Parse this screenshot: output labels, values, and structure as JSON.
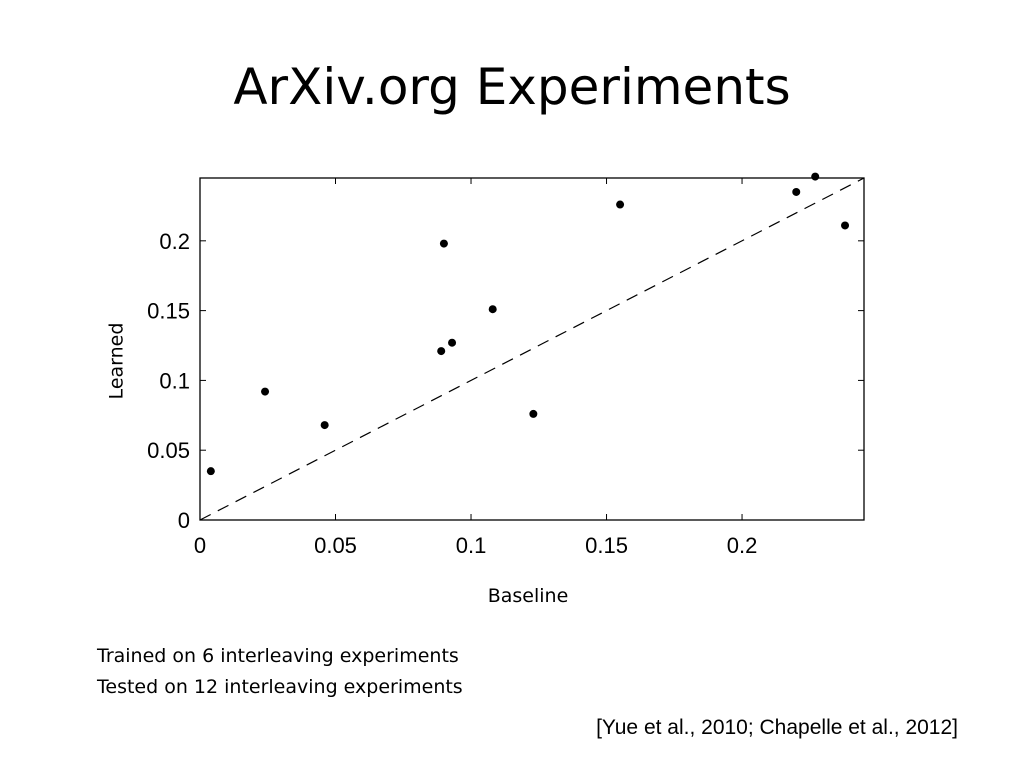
{
  "slide": {
    "title": "ArXiv.org Experiments",
    "notes": [
      "Trained on 6 interleaving experiments",
      "Tested on 12 interleaving experiments"
    ],
    "citation": "[Yue et al., 2010; Chapelle et al., 2012]"
  },
  "chart_data": {
    "type": "scatter",
    "xlabel": "Baseline",
    "ylabel": "Learned",
    "xlim": [
      0,
      0.245
    ],
    "ylim": [
      0,
      0.245
    ],
    "x_ticks": [
      0,
      0.05,
      0.1,
      0.15,
      0.2
    ],
    "x_tick_labels": [
      "0",
      "0.05",
      "0.1",
      "0.15",
      "0.2"
    ],
    "y_ticks": [
      0,
      0.05,
      0.1,
      0.15,
      0.2
    ],
    "y_tick_labels": [
      "0",
      "0.05",
      "0.1",
      "0.15",
      "0.2"
    ],
    "grid": false,
    "reference_line": {
      "style": "dashed",
      "from": [
        0,
        0
      ],
      "to": [
        0.245,
        0.245
      ]
    },
    "points": [
      {
        "x": 0.004,
        "y": 0.035
      },
      {
        "x": 0.024,
        "y": 0.092
      },
      {
        "x": 0.046,
        "y": 0.068
      },
      {
        "x": 0.089,
        "y": 0.121
      },
      {
        "x": 0.09,
        "y": 0.198
      },
      {
        "x": 0.093,
        "y": 0.127
      },
      {
        "x": 0.108,
        "y": 0.151
      },
      {
        "x": 0.123,
        "y": 0.076
      },
      {
        "x": 0.155,
        "y": 0.226
      },
      {
        "x": 0.22,
        "y": 0.235
      },
      {
        "x": 0.227,
        "y": 0.246
      },
      {
        "x": 0.238,
        "y": 0.211
      }
    ]
  }
}
